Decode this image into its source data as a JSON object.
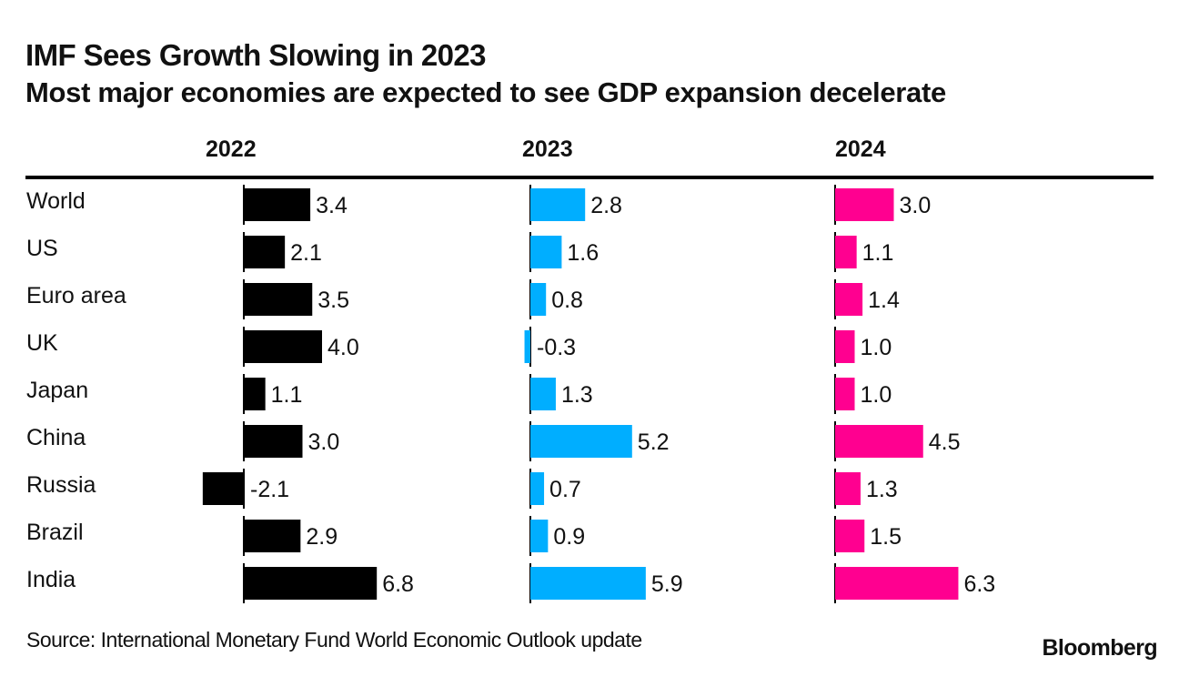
{
  "chart_data": {
    "type": "bar",
    "orientation": "horizontal",
    "title": "IMF Sees Growth Slowing in 2023",
    "subtitle": "Most major economies are expected to see GDP expansion decelerate",
    "categories": [
      "World",
      "US",
      "Euro area",
      "UK",
      "Japan",
      "China",
      "Russia",
      "Brazil",
      "India"
    ],
    "series": [
      {
        "name": "2022",
        "color": "#000000",
        "values": [
          3.4,
          2.1,
          3.5,
          4.0,
          1.1,
          3.0,
          -2.1,
          2.9,
          6.8
        ],
        "labels": [
          "3.4",
          "2.1",
          "3.5",
          "4.0",
          "1.1",
          "3.0",
          "-2.1",
          "2.9",
          "6.8"
        ]
      },
      {
        "name": "2023",
        "color": "#00AEFF",
        "values": [
          2.8,
          1.6,
          0.8,
          -0.3,
          1.3,
          5.2,
          0.7,
          0.9,
          5.9
        ],
        "labels": [
          "2.8",
          "1.6",
          "0.8",
          "-0.3",
          "1.3",
          "5.2",
          "0.7",
          "0.9",
          "5.9"
        ]
      },
      {
        "name": "2024",
        "color": "#FF0090",
        "values": [
          3.0,
          1.1,
          1.4,
          1.0,
          1.0,
          4.5,
          1.3,
          1.5,
          6.3
        ],
        "labels": [
          "3.0",
          "1.1",
          "1.4",
          "1.0",
          "1.0",
          "4.5",
          "1.3",
          "1.5",
          "6.3"
        ]
      }
    ],
    "xlabel": "",
    "ylabel": "",
    "grid": false,
    "legend": "column-headers"
  },
  "footer": {
    "source": "Source: International Monetary Fund World Economic Outlook update",
    "brand": "Bloomberg"
  }
}
